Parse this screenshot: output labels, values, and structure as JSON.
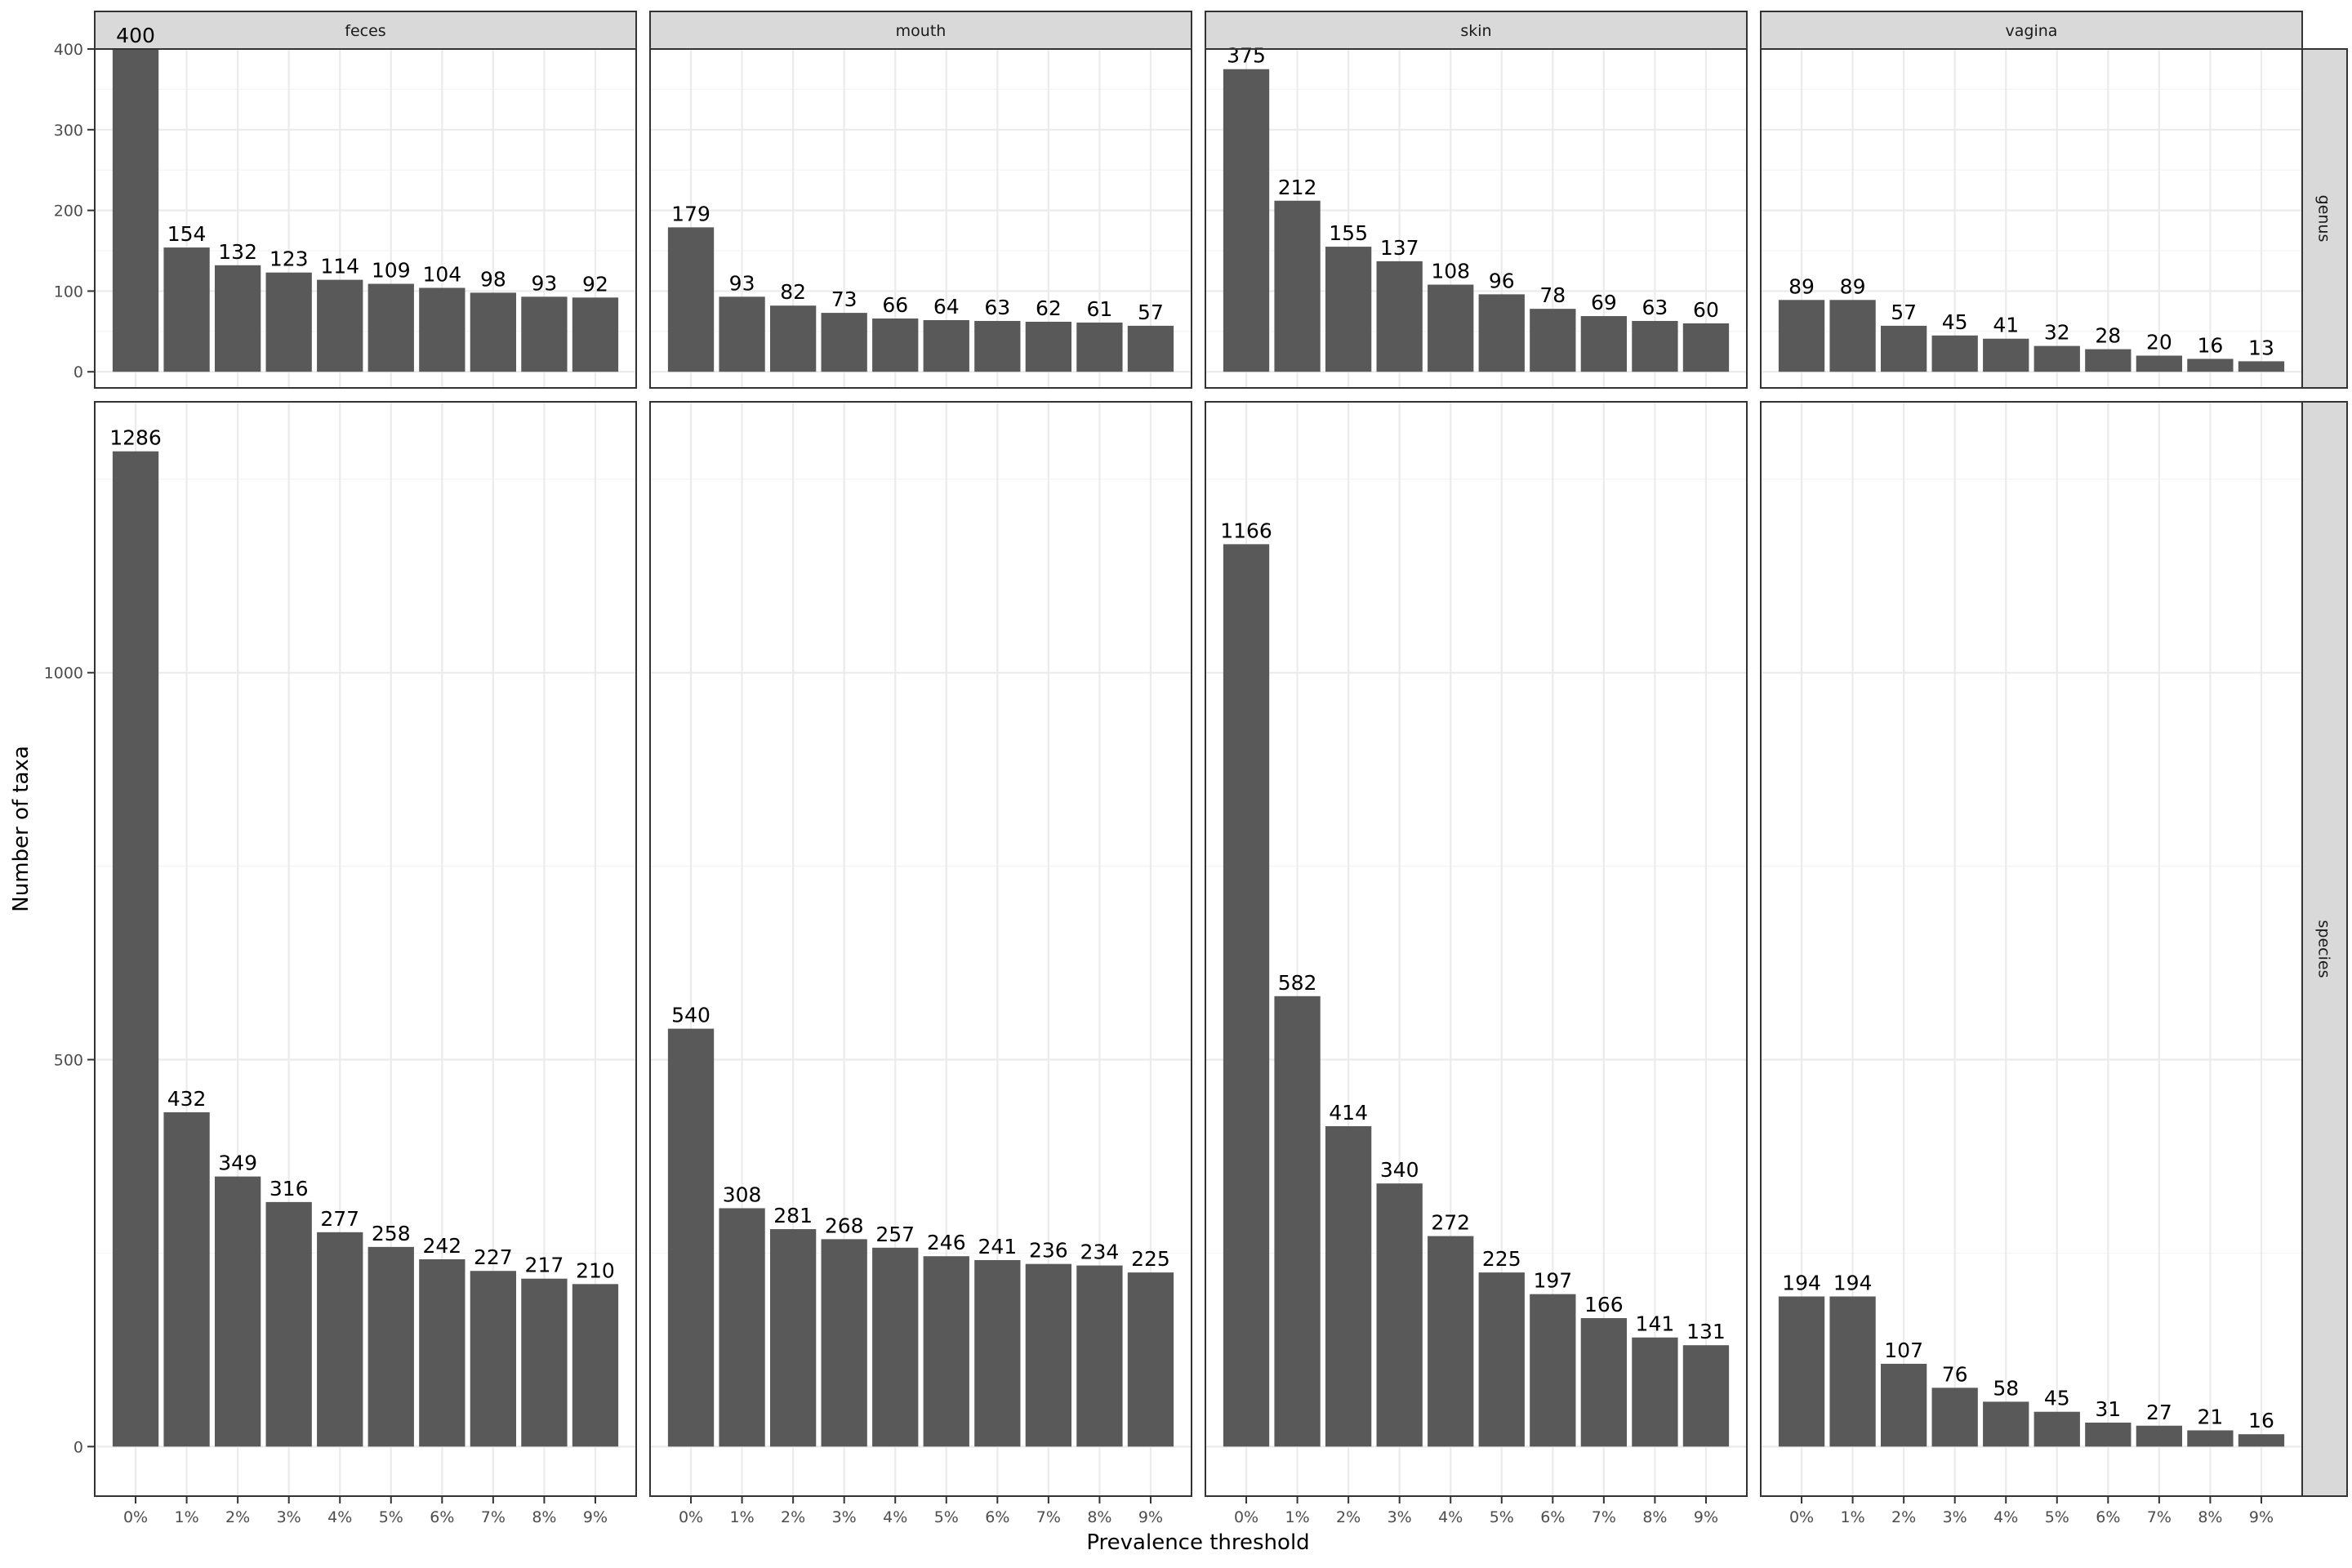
{
  "chart_data": {
    "type": "bar",
    "xlabel": "Prevalence threshold",
    "ylabel": "Number of taxa",
    "categories": [
      "0%",
      "1%",
      "2%",
      "3%",
      "4%",
      "5%",
      "6%",
      "7%",
      "8%",
      "9%"
    ],
    "column_facets": [
      "feces",
      "mouth",
      "skin",
      "vagina"
    ],
    "row_facets": [
      "genus",
      "species"
    ],
    "grid": true,
    "bar_color": "#595959",
    "rows": [
      {
        "facet": "genus",
        "ylim": [
          -20,
          400
        ],
        "yticks": [
          0,
          100,
          200,
          300,
          400
        ],
        "panels": [
          {
            "facet": "feces",
            "values": [
              400,
              154,
              132,
              123,
              114,
              109,
              104,
              98,
              93,
              92
            ]
          },
          {
            "facet": "mouth",
            "values": [
              179,
              93,
              82,
              73,
              66,
              64,
              63,
              62,
              61,
              57
            ]
          },
          {
            "facet": "skin",
            "values": [
              375,
              212,
              155,
              137,
              108,
              96,
              78,
              69,
              63,
              60
            ]
          },
          {
            "facet": "vagina",
            "values": [
              89,
              89,
              57,
              45,
              41,
              32,
              28,
              20,
              16,
              13
            ]
          }
        ]
      },
      {
        "facet": "species",
        "ylim": [
          -64,
          1350
        ],
        "yticks": [
          0,
          500,
          1000
        ],
        "panels": [
          {
            "facet": "feces",
            "values": [
              1286,
              432,
              349,
              316,
              277,
              258,
              242,
              227,
              217,
              210
            ]
          },
          {
            "facet": "mouth",
            "values": [
              540,
              308,
              281,
              268,
              257,
              246,
              241,
              236,
              234,
              225
            ]
          },
          {
            "facet": "skin",
            "values": [
              1166,
              582,
              414,
              340,
              272,
              225,
              197,
              166,
              141,
              131
            ]
          },
          {
            "facet": "vagina",
            "values": [
              194,
              194,
              107,
              76,
              58,
              45,
              31,
              27,
              21,
              16
            ]
          }
        ]
      }
    ]
  }
}
